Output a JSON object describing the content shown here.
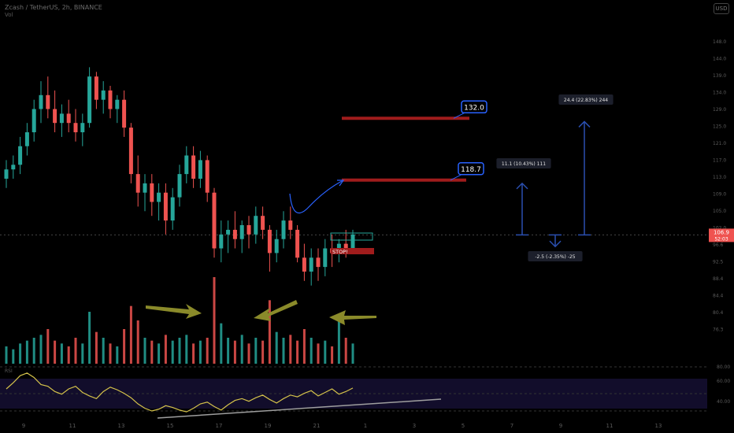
{
  "header": {
    "symbol_line": "Zcash / TetherUS, 2h, BINANCE",
    "sub_line": "Vol",
    "button_label": "USD"
  },
  "colors": {
    "background": "#000000",
    "up": "#26a69a",
    "down": "#ef5350",
    "target_line": "#a01c1c",
    "callout": "#2962ff",
    "arrow_note": "#8a8a2a",
    "rsi": "#d4c24a",
    "trend": "#9e9e9e",
    "measure": "#2a4fb0"
  },
  "chart_data": {
    "type": "candlestick",
    "price_axis_ticks": [
      "148.0",
      "144.0",
      "139.0",
      "134.0",
      "129.0",
      "125.0",
      "121.0",
      "117.0",
      "113.0",
      "109.0",
      "105.0",
      "102.0",
      "96.6",
      "92.5",
      "88.4",
      "84.4",
      "80.4",
      "76.3"
    ],
    "x_axis_ticks": [
      "9",
      "11",
      "13",
      "15",
      "17",
      "19",
      "21",
      "1",
      "3",
      "5",
      "7",
      "9",
      "11",
      "13"
    ],
    "current_price": "106.9",
    "countdown": "52:03",
    "candles": [
      [
        119,
        123,
        117,
        121
      ],
      [
        121,
        124,
        119,
        122
      ],
      [
        122,
        128,
        120,
        126
      ],
      [
        126,
        131,
        124,
        129
      ],
      [
        129,
        136,
        127,
        134
      ],
      [
        134,
        140,
        131,
        137
      ],
      [
        137,
        141,
        132,
        134
      ],
      [
        134,
        138,
        129,
        131
      ],
      [
        131,
        135,
        128,
        133
      ],
      [
        133,
        136,
        129,
        131
      ],
      [
        131,
        134,
        127,
        129
      ],
      [
        129,
        133,
        126,
        131
      ],
      [
        131,
        143,
        130,
        141
      ],
      [
        141,
        142,
        134,
        136
      ],
      [
        136,
        140,
        133,
        138
      ],
      [
        138,
        139,
        132,
        134
      ],
      [
        134,
        137,
        131,
        136
      ],
      [
        136,
        138,
        128,
        130
      ],
      [
        130,
        131,
        118,
        120
      ],
      [
        120,
        124,
        113,
        116
      ],
      [
        116,
        120,
        112,
        118
      ],
      [
        118,
        120,
        111,
        114
      ],
      [
        114,
        118,
        110,
        116
      ],
      [
        116,
        118,
        107,
        110
      ],
      [
        110,
        117,
        108,
        115
      ],
      [
        115,
        122,
        113,
        120
      ],
      [
        120,
        126,
        118,
        124
      ],
      [
        124,
        126,
        117,
        119
      ],
      [
        119,
        125,
        117,
        123
      ],
      [
        123,
        124,
        114,
        116
      ],
      [
        116,
        117,
        102,
        104
      ],
      [
        104,
        110,
        101,
        107
      ],
      [
        107,
        110,
        103,
        108
      ],
      [
        108,
        112,
        104,
        106
      ],
      [
        106,
        110,
        103,
        109
      ],
      [
        109,
        111,
        104,
        107
      ],
      [
        107,
        113,
        105,
        111
      ],
      [
        111,
        113,
        106,
        108
      ],
      [
        108,
        109,
        99,
        103
      ],
      [
        103,
        108,
        101,
        106
      ],
      [
        106,
        112,
        104,
        110
      ],
      [
        110,
        113,
        106,
        108
      ],
      [
        108,
        109,
        101,
        102
      ],
      [
        102,
        105,
        97,
        99
      ],
      [
        99,
        104,
        96,
        102
      ],
      [
        102,
        104,
        97,
        100
      ],
      [
        100,
        106,
        98,
        104
      ],
      [
        104,
        107,
        100,
        103
      ],
      [
        103,
        106,
        101,
        105
      ],
      [
        105,
        108,
        102,
        104
      ],
      [
        104,
        108,
        103,
        107
      ]
    ],
    "volumes": [
      6,
      5,
      7,
      8,
      9,
      10,
      12,
      8,
      7,
      6,
      9,
      7,
      18,
      11,
      9,
      7,
      6,
      12,
      20,
      15,
      9,
      8,
      7,
      10,
      8,
      9,
      10,
      7,
      8,
      9,
      30,
      14,
      9,
      8,
      10,
      7,
      9,
      8,
      22,
      11,
      9,
      10,
      8,
      12,
      9,
      7,
      8,
      6,
      15,
      9,
      7
    ],
    "levels": [
      {
        "label": "132.0",
        "price": 132.0
      },
      {
        "label": "118.7",
        "price": 118.7
      }
    ],
    "stop_label": "STOP!",
    "measures": [
      {
        "label": "11.1 (10.43%) 111",
        "from": 106.9,
        "to": 118.0
      },
      {
        "label": "24.4 (22.83%) 244",
        "from": 106.9,
        "to": 131.3
      },
      {
        "label": "-2.5 (-2.35%) -25",
        "from": 106.9,
        "to": 104.4
      }
    ],
    "rsi": {
      "axis_ticks": [
        "80.00",
        "60.00",
        "40.00"
      ],
      "values": [
        55,
        62,
        70,
        73,
        68,
        60,
        58,
        52,
        49,
        55,
        58,
        51,
        47,
        44,
        52,
        57,
        54,
        50,
        45,
        38,
        33,
        30,
        32,
        36,
        34,
        31,
        29,
        33,
        38,
        40,
        35,
        31,
        37,
        42,
        44,
        41,
        45,
        48,
        43,
        39,
        44,
        48,
        46,
        50,
        53,
        47,
        51,
        55,
        49,
        52,
        56
      ]
    }
  }
}
